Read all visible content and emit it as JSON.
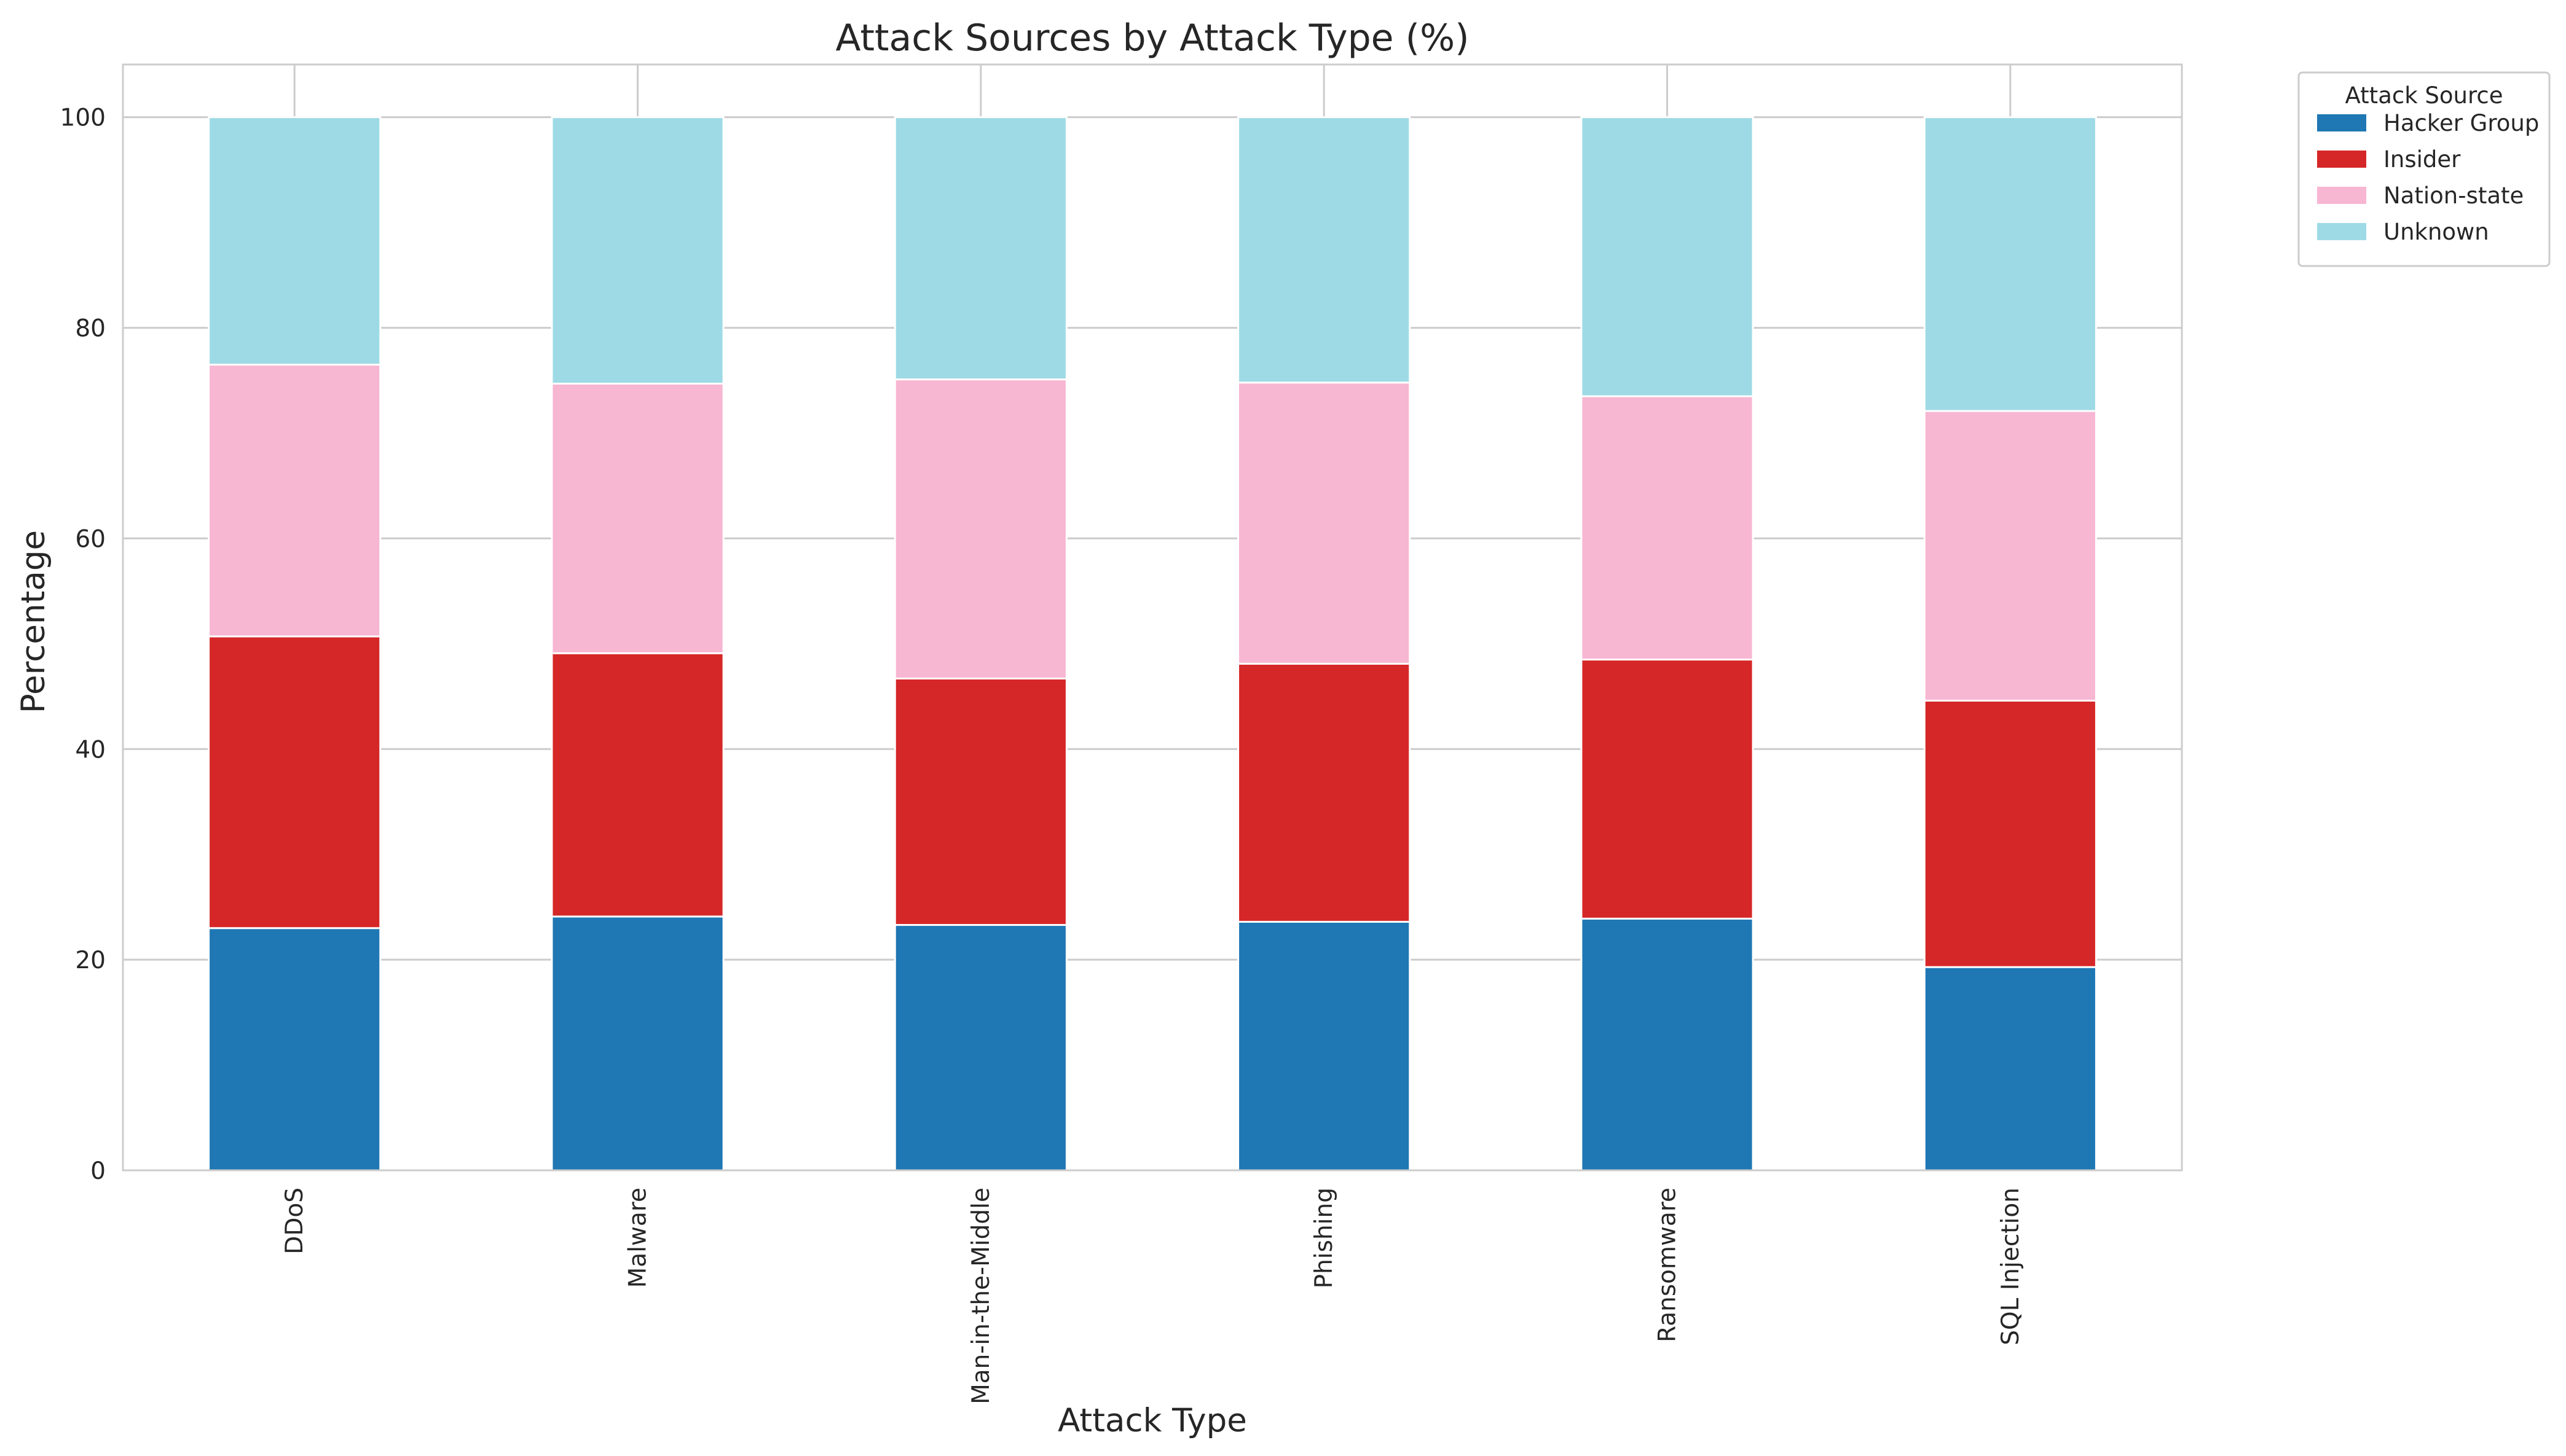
{
  "chart_data": {
    "type": "bar",
    "stacked": true,
    "title": "Attack Sources by Attack Type (%)",
    "xlabel": "Attack Type",
    "ylabel": "Percentage",
    "ylim": [
      0,
      105
    ],
    "yticks": [
      0,
      20,
      40,
      60,
      80,
      100
    ],
    "grid": true,
    "legend_title": "Attack Source",
    "legend_position": "outside top-right",
    "categories": [
      "DDoS",
      "Malware",
      "Man-in-the-Middle",
      "Phishing",
      "Ransomware",
      "SQL Injection"
    ],
    "series": [
      {
        "name": "Hacker Group",
        "color": "#1f77b4",
        "values": [
          23.0,
          24.1,
          23.3,
          23.6,
          23.9,
          19.3
        ]
      },
      {
        "name": "Insider",
        "color": "#d62728",
        "values": [
          27.7,
          25.0,
          23.4,
          24.5,
          24.6,
          25.3
        ]
      },
      {
        "name": "Nation-state",
        "color": "#f7b6d2",
        "values": [
          25.8,
          25.6,
          28.4,
          26.7,
          25.0,
          27.5
        ]
      },
      {
        "name": "Unknown",
        "color": "#9edae5",
        "values": [
          23.5,
          25.3,
          24.9,
          25.2,
          26.5,
          27.9
        ]
      }
    ]
  }
}
